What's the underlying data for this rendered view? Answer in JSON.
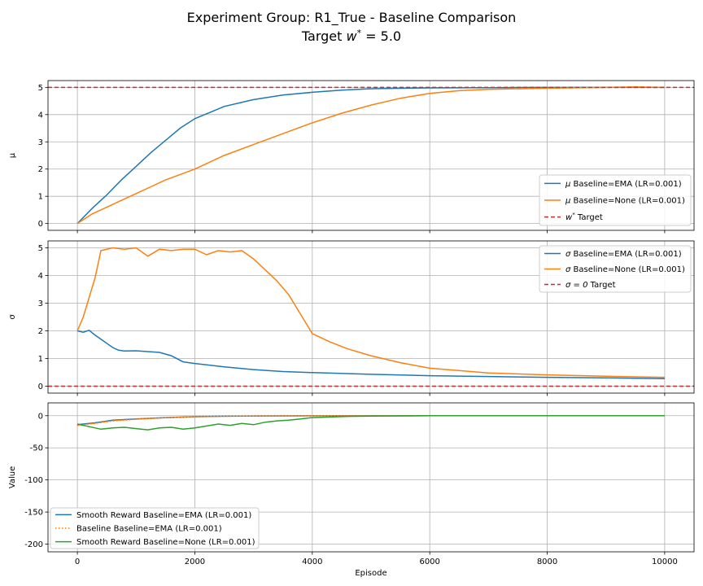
{
  "figure": {
    "title_line1": "Experiment Group: R1_True - Baseline Comparison",
    "title_line2_prefix": "Target ",
    "title_line2_var": "w",
    "title_line2_sup": "*",
    "title_line2_suffix": " = 5.0"
  },
  "colors": {
    "blue": "#1f77b4",
    "orange": "#ff7f0e",
    "green": "#2ca02c",
    "red": "#d62728",
    "grid": "#b0b0b0"
  },
  "chart_data": [
    {
      "type": "line",
      "ylabel": "μ",
      "xlim": [
        -500,
        10500
      ],
      "ylim": [
        -0.25,
        5.25
      ],
      "yticks": [
        0,
        1,
        2,
        3,
        4,
        5
      ],
      "xticks": [
        0,
        2000,
        4000,
        6000,
        8000,
        10000
      ],
      "grid": true,
      "legend_position": "lower-right",
      "series": [
        {
          "name": "Baseline=EMA (LR=0.001)",
          "legend_symbol": "μ",
          "color": "blue",
          "style": "solid",
          "x": [
            0,
            250,
            500,
            750,
            1000,
            1250,
            1500,
            1750,
            2000,
            2500,
            3000,
            3500,
            4000,
            4500,
            5000,
            6000,
            7000,
            8000,
            9000,
            10000
          ],
          "y": [
            0,
            0.55,
            1.05,
            1.6,
            2.1,
            2.6,
            3.05,
            3.5,
            3.85,
            4.3,
            4.55,
            4.72,
            4.82,
            4.9,
            4.95,
            4.98,
            4.99,
            5.0,
            5.0,
            5.0
          ]
        },
        {
          "name": "Baseline=None (LR=0.001)",
          "legend_symbol": "μ",
          "color": "orange",
          "style": "solid",
          "x": [
            0,
            250,
            500,
            750,
            1000,
            1250,
            1500,
            1750,
            2000,
            2500,
            3000,
            3500,
            4000,
            4500,
            5000,
            5500,
            6000,
            6500,
            7000,
            8000,
            9000,
            9500,
            10000
          ],
          "y": [
            0,
            0.35,
            0.6,
            0.85,
            1.1,
            1.35,
            1.6,
            1.8,
            2.0,
            2.5,
            2.9,
            3.3,
            3.7,
            4.05,
            4.35,
            4.6,
            4.78,
            4.88,
            4.93,
            4.97,
            5.0,
            5.02,
            5.0
          ]
        },
        {
          "name": "Target",
          "legend_symbol": "w*",
          "color": "red",
          "style": "dashed",
          "x": [
            -500,
            10500
          ],
          "y": [
            5,
            5
          ]
        }
      ]
    },
    {
      "type": "line",
      "ylabel": "σ",
      "xlim": [
        -500,
        10500
      ],
      "ylim": [
        -0.25,
        5.25
      ],
      "yticks": [
        0,
        1,
        2,
        3,
        4,
        5
      ],
      "xticks": [
        0,
        2000,
        4000,
        6000,
        8000,
        10000
      ],
      "grid": true,
      "legend_position": "upper-right",
      "series": [
        {
          "name": "Baseline=EMA (LR=0.001)",
          "legend_symbol": "σ",
          "color": "blue",
          "style": "solid",
          "x": [
            0,
            100,
            200,
            300,
            400,
            500,
            600,
            700,
            800,
            1000,
            1200,
            1400,
            1600,
            1800,
            2000,
            2500,
            3000,
            3500,
            4000,
            5000,
            6000,
            7000,
            8000,
            9000,
            10000
          ],
          "y": [
            2.0,
            1.95,
            2.02,
            1.85,
            1.7,
            1.55,
            1.4,
            1.3,
            1.27,
            1.28,
            1.25,
            1.22,
            1.1,
            0.88,
            0.82,
            0.7,
            0.6,
            0.53,
            0.49,
            0.43,
            0.38,
            0.35,
            0.32,
            0.3,
            0.27
          ]
        },
        {
          "name": "Baseline=None (LR=0.001)",
          "legend_symbol": "σ",
          "color": "orange",
          "style": "solid",
          "x": [
            0,
            100,
            200,
            300,
            350,
            400,
            600,
            800,
            1000,
            1100,
            1200,
            1400,
            1600,
            1800,
            2000,
            2200,
            2400,
            2600,
            2800,
            3000,
            3200,
            3400,
            3600,
            3800,
            4000,
            4300,
            4600,
            5000,
            5500,
            6000,
            7000,
            8000,
            9000,
            10000
          ],
          "y": [
            2.0,
            2.5,
            3.2,
            3.9,
            4.4,
            4.9,
            5.0,
            4.95,
            5.0,
            4.85,
            4.7,
            4.95,
            4.9,
            4.95,
            4.95,
            4.75,
            4.9,
            4.85,
            4.9,
            4.6,
            4.2,
            3.8,
            3.3,
            2.6,
            1.9,
            1.6,
            1.35,
            1.1,
            0.85,
            0.65,
            0.48,
            0.41,
            0.36,
            0.32
          ]
        },
        {
          "name": "Target",
          "legend_symbol": "σ = 0",
          "color": "red",
          "style": "dashed",
          "x": [
            -500,
            10500
          ],
          "y": [
            0,
            0
          ]
        }
      ]
    },
    {
      "type": "line",
      "ylabel": "Value",
      "xlabel": "Episode",
      "xlim": [
        -500,
        10500
      ],
      "ylim": [
        -212,
        20
      ],
      "yticks": [
        0,
        -50,
        -100,
        -150,
        -200
      ],
      "xticks": [
        0,
        2000,
        4000,
        6000,
        8000,
        10000
      ],
      "xticklabels": [
        "0",
        "2000",
        "4000",
        "6000",
        "8000",
        "10000"
      ],
      "grid": true,
      "legend_position": "lower-left",
      "series": [
        {
          "name": "Smooth Reward Baseline=EMA (LR=0.001)",
          "color": "blue",
          "style": "solid",
          "x": [
            0,
            300,
            600,
            1000,
            1500,
            2000,
            2500,
            3000,
            4000,
            6000,
            8000,
            10000
          ],
          "y": [
            -14,
            -11,
            -7,
            -5,
            -3,
            -1.5,
            -0.8,
            -0.4,
            -0.1,
            0,
            0,
            0
          ]
        },
        {
          "name": "Baseline Baseline=EMA (LR=0.001)",
          "color": "orange",
          "style": "dotted",
          "x": [
            0,
            300,
            600,
            1000,
            1500,
            2000,
            2500,
            3000,
            4000,
            6000,
            8000,
            10000
          ],
          "y": [
            -15,
            -12,
            -8,
            -5.5,
            -3.2,
            -1.6,
            -0.9,
            -0.5,
            -0.1,
            0,
            0,
            0
          ]
        },
        {
          "name": "Smooth Reward Baseline=None (LR=0.001)",
          "color": "green",
          "style": "solid",
          "x": [
            0,
            200,
            400,
            600,
            800,
            1000,
            1200,
            1400,
            1600,
            1800,
            2000,
            2200,
            2400,
            2600,
            2800,
            3000,
            3200,
            3400,
            3600,
            3800,
            4000,
            4300,
            4600,
            5000,
            6000,
            8000,
            10000
          ],
          "y": [
            -13,
            -17,
            -21,
            -19,
            -18,
            -20,
            -22,
            -19,
            -18,
            -21,
            -19,
            -16,
            -13,
            -15,
            -12,
            -14,
            -10,
            -8,
            -7,
            -5,
            -3,
            -2,
            -1,
            -0.5,
            0,
            0,
            0
          ]
        }
      ]
    }
  ]
}
